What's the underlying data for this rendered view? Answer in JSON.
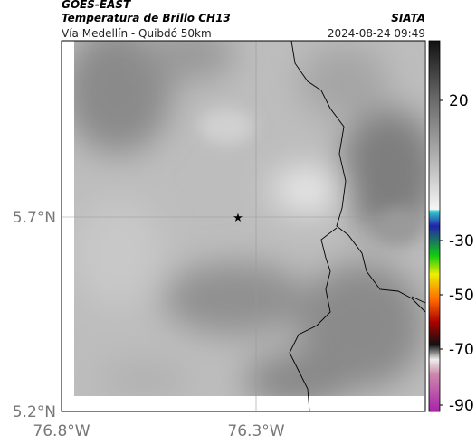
{
  "header": {
    "satellite": "GOES-EAST",
    "product": "Temperatura de Brillo CH13",
    "agency": "SIATA",
    "location": "Vía Medellín - Quibdó 50km",
    "datetime": "2024-08-24 09:49"
  },
  "axes": {
    "lat_labels": [
      "5.7°N",
      "5.2°N"
    ],
    "lon_labels": [
      "76.8°W",
      "76.3°W"
    ]
  },
  "colorbar": {
    "labels": [
      "20",
      "-30",
      "-50",
      "-70",
      "-90"
    ]
  }
}
